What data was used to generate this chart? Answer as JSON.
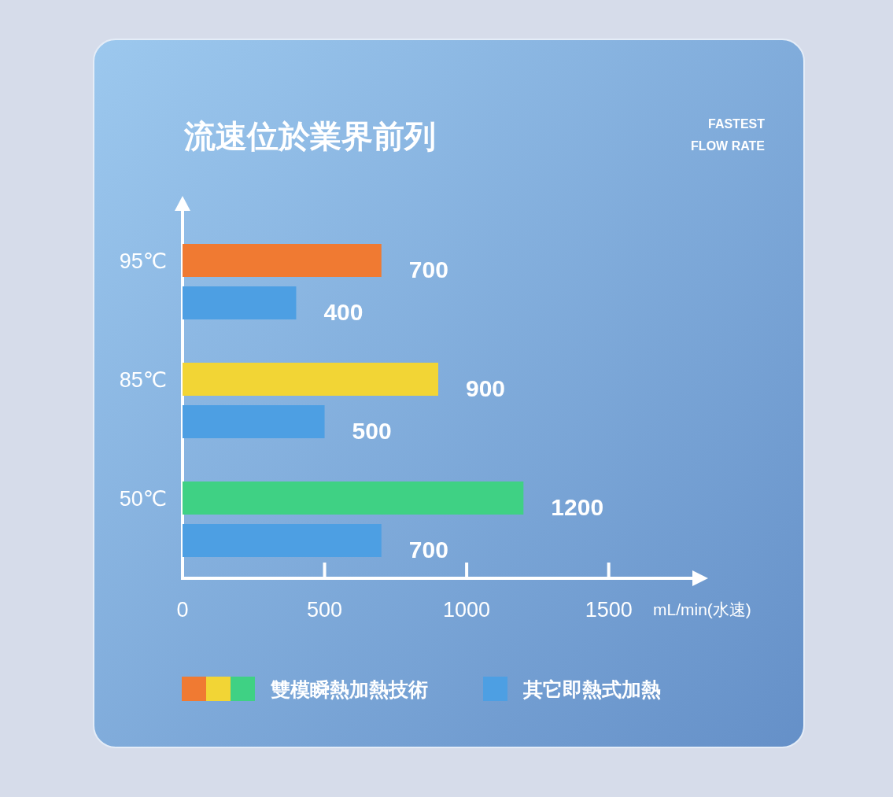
{
  "chart_data": {
    "type": "bar",
    "orientation": "horizontal",
    "title": "流速位於業界前列",
    "subtitle": "FASTEST\nFLOW RATE",
    "xlabel": "mL/min(水速)",
    "categories": [
      "95℃",
      "85℃",
      "50℃"
    ],
    "series": [
      {
        "name": "雙模瞬熱加熱技術",
        "colors": [
          "#f07a32",
          "#f2d535",
          "#3fd184"
        ],
        "values": [
          700,
          900,
          1200
        ]
      },
      {
        "name": "其它即熱式加熱",
        "color": "#4d9fe3",
        "values": [
          400,
          500,
          700
        ]
      }
    ],
    "xlim": [
      0,
      1800
    ],
    "xticks": [
      0,
      500,
      1000,
      1500
    ],
    "data_labels": true,
    "grid": false,
    "legend": "bottom"
  }
}
